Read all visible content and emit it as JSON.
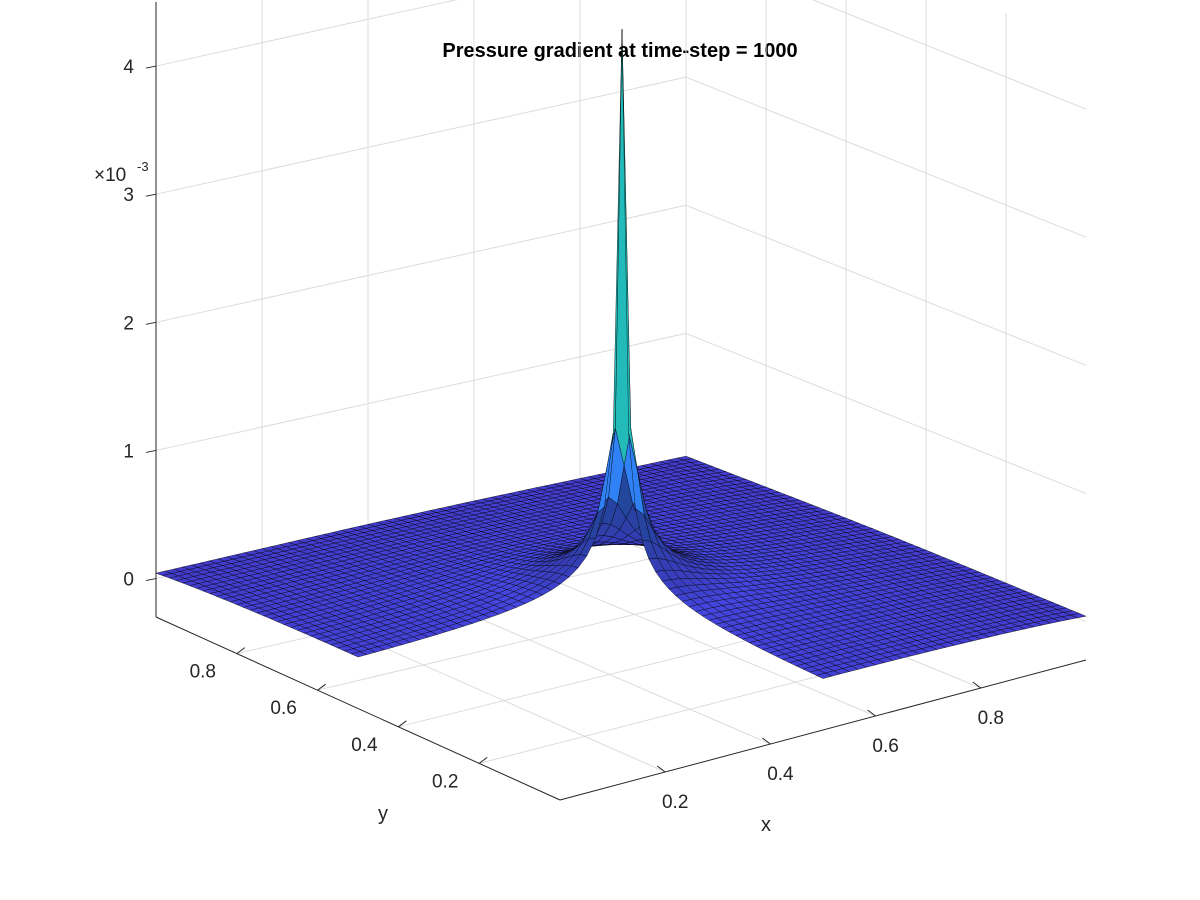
{
  "chart_data": {
    "type": "surface",
    "title": "Pressure gradient at time-step = 1000",
    "xlabel": "x",
    "ylabel": "y",
    "zlabel": "",
    "xlim": [
      0,
      1
    ],
    "ylim": [
      0,
      1
    ],
    "zlim": [
      -0.0003,
      0.0045
    ],
    "z_multiplier_text": "×10",
    "z_multiplier_exponent": "-3",
    "x_ticks": [
      "0.2",
      "0.4",
      "0.6",
      "0.8"
    ],
    "y_ticks": [
      "0.2",
      "0.4",
      "0.6",
      "0.8"
    ],
    "z_ticks": [
      "0",
      "1",
      "2",
      "3",
      "4"
    ],
    "grid": true,
    "colormap": "parula",
    "domain_shape": "L-shaped (upper-right quadrant x>0.5, y>0.5 removed... shown region: y>0.5 strip and x>0.5 strip joined at corner)",
    "surface": {
      "mesh_resolution": 0.0167,
      "base_value": 0.0,
      "peak": {
        "x": 0.5,
        "y": 0.5,
        "z": 0.0045
      },
      "description_values": [
        {
          "location": "far field",
          "z": 5e-05
        },
        {
          "location": "near corner (0.5,0.5) radius 0.05",
          "z": 0.001
        },
        {
          "location": "corner point",
          "z": 0.0045
        }
      ]
    }
  }
}
